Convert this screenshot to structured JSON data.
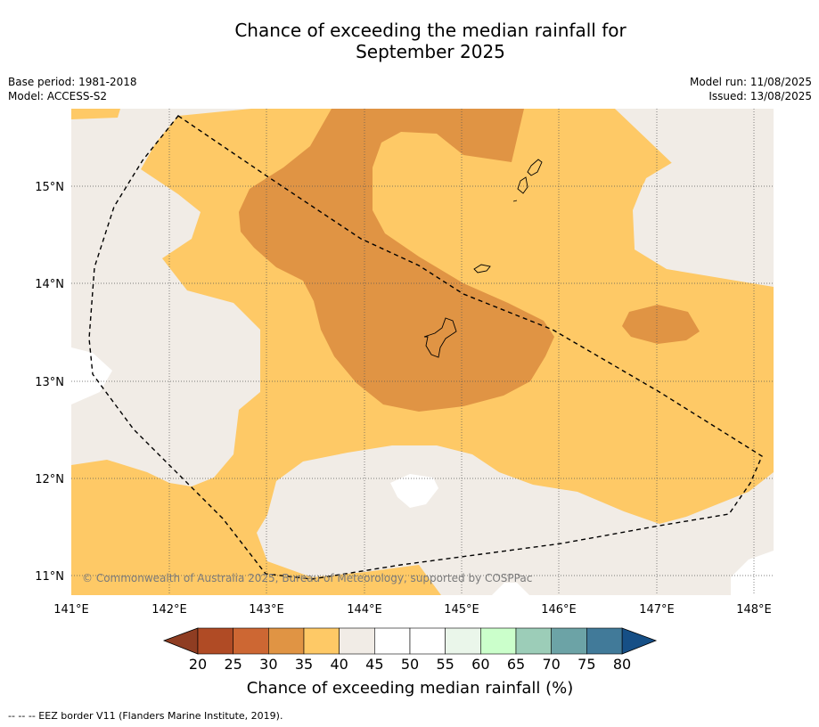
{
  "title_line1": "Chance of exceeding the median rainfall for",
  "title_line2": "September 2025",
  "base_period": "Base period: 1981-2018",
  "model": "Model: ACCESS-S2",
  "model_run": "Model run: 11/08/2025",
  "issued": "Issued: 13/08/2025",
  "attribution": "© Commonwealth of Australia 2025, Bureau of Meteorology, supported by COSPPac",
  "footer": "--  --  -- EEZ border V11 (Flanders Marine Institute, 2019).",
  "colorbar_label": "Chance of exceeding median rainfall (%)",
  "colorbar_ticks": [
    "20",
    "25",
    "30",
    "35",
    "40",
    "45",
    "50",
    "55",
    "60",
    "65",
    "70",
    "75",
    "80"
  ],
  "colorbar_colors": [
    "#b04b25",
    "#cd6733",
    "#e09444",
    "#fec966",
    "#f1ece6",
    "#ffffff",
    "#ffffff",
    "#eaf6ea",
    "#cbffcb",
    "#9ccdb8",
    "#6ca3a6",
    "#417a99"
  ],
  "colorbar_under": "#8f3d22",
  "colorbar_over": "#164f86",
  "lon_ticks": [
    "141°E",
    "142°E",
    "143°E",
    "144°E",
    "145°E",
    "146°E",
    "147°E",
    "148°E"
  ],
  "lat_ticks": [
    "15°N",
    "14°N",
    "13°N",
    "12°N",
    "11°N"
  ],
  "map_colors": {
    "c40_45": "#f1ece6",
    "c35_40": "#fec966",
    "c30_35": "#e09444",
    "c45_50": "#ffffff"
  }
}
